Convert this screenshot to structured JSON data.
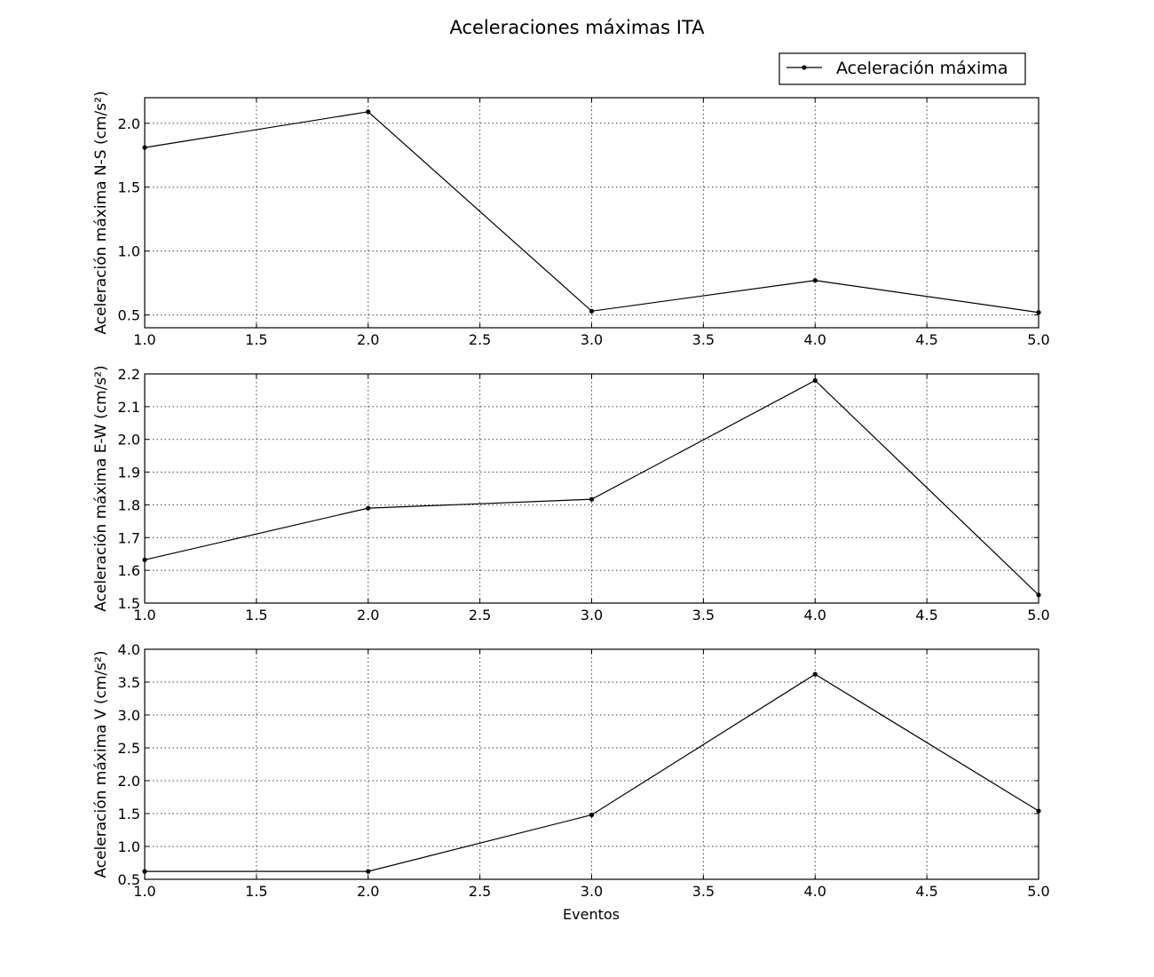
{
  "figure": {
    "title": "Aceleraciones máximas ITA",
    "xlabel": "Eventos",
    "legend": {
      "label": "Aceleración máxima",
      "position": "top-right"
    },
    "line_color": "#000000",
    "grid_color": "#000000"
  },
  "chart_data": [
    {
      "type": "line",
      "ylabel": "Aceleración máxima N-S (cm/s²)",
      "xlim": [
        1.0,
        5.0
      ],
      "ylim": [
        0.4,
        2.2
      ],
      "xticks": [
        1.0,
        1.5,
        2.0,
        2.5,
        3.0,
        3.5,
        4.0,
        4.5,
        5.0
      ],
      "yticks": [
        0.5,
        1.0,
        1.5,
        2.0
      ],
      "grid": true,
      "series": [
        {
          "name": "Aceleración máxima",
          "x": [
            1,
            2,
            3,
            4,
            5
          ],
          "y": [
            1.81,
            2.09,
            0.53,
            0.77,
            0.52
          ]
        }
      ]
    },
    {
      "type": "line",
      "ylabel": "Aceleración máxima E-W (cm/s²)",
      "xlim": [
        1.0,
        5.0
      ],
      "ylim": [
        1.5,
        2.2
      ],
      "xticks": [
        1.0,
        1.5,
        2.0,
        2.5,
        3.0,
        3.5,
        4.0,
        4.5,
        5.0
      ],
      "yticks": [
        1.5,
        1.6,
        1.7,
        1.8,
        1.9,
        2.0,
        2.1,
        2.2
      ],
      "grid": true,
      "series": [
        {
          "name": "Aceleración máxima",
          "x": [
            1,
            2,
            3,
            4,
            5
          ],
          "y": [
            1.632,
            1.79,
            1.817,
            2.18,
            1.525
          ]
        }
      ]
    },
    {
      "type": "line",
      "ylabel": "Aceleración máxima V (cm/s²)",
      "xlabel": "Eventos",
      "xlim": [
        1.0,
        5.0
      ],
      "ylim": [
        0.5,
        4.0
      ],
      "xticks": [
        1.0,
        1.5,
        2.0,
        2.5,
        3.0,
        3.5,
        4.0,
        4.5,
        5.0
      ],
      "yticks": [
        0.5,
        1.0,
        1.5,
        2.0,
        2.5,
        3.0,
        3.5,
        4.0
      ],
      "grid": true,
      "series": [
        {
          "name": "Aceleración máxima",
          "x": [
            1,
            2,
            3,
            4,
            5
          ],
          "y": [
            0.62,
            0.62,
            1.48,
            3.62,
            1.54
          ]
        }
      ]
    }
  ]
}
